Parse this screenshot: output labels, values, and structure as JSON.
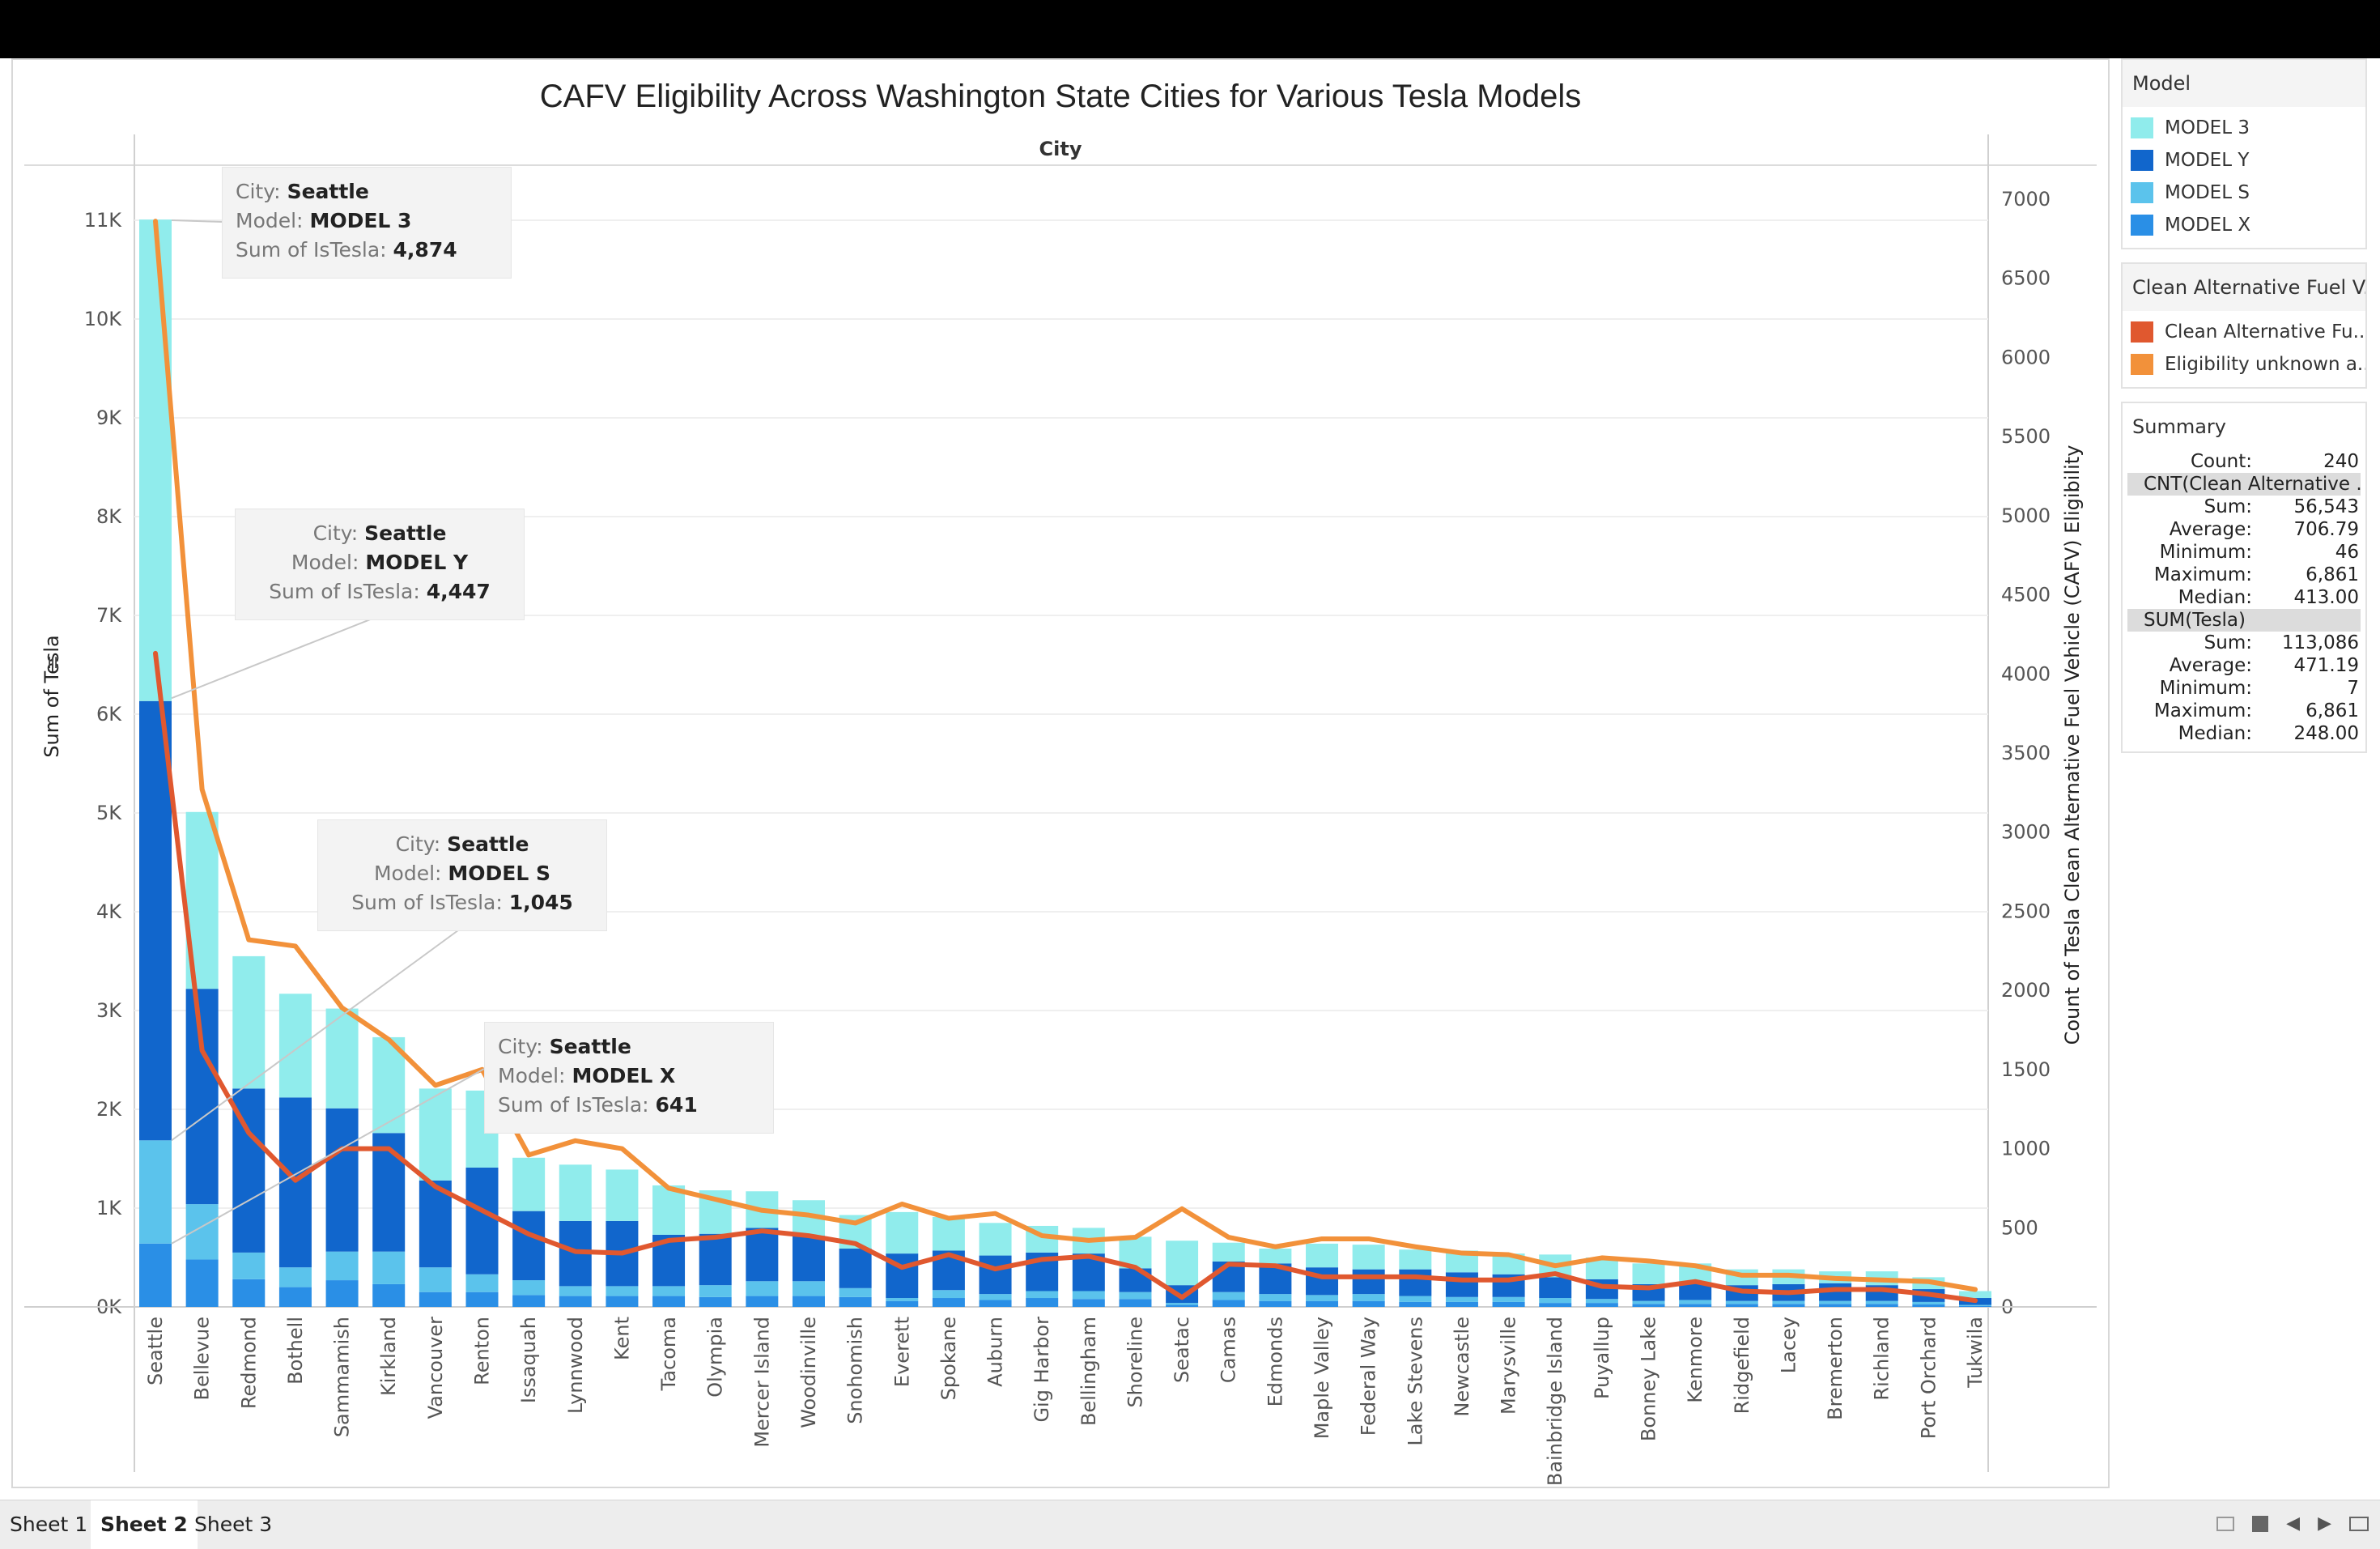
{
  "chart_data": {
    "type": "bar",
    "title": "CAFV Eligibility Across Washington State Cities for Various Tesla Models",
    "column_header": "City",
    "ylabel_left": "Sum of Tesla",
    "ylabel_right": "Count of Tesla Clean Alternative Fuel Vehicle (CAFV) Eligibility",
    "ylim_left": [
      0,
      11000
    ],
    "ylim_right": [
      0,
      7000
    ],
    "left_ticks": [
      {
        "v": 0,
        "label": "0K"
      },
      {
        "v": 1000,
        "label": "1K"
      },
      {
        "v": 2000,
        "label": "2K"
      },
      {
        "v": 3000,
        "label": "3K"
      },
      {
        "v": 4000,
        "label": "4K"
      },
      {
        "v": 5000,
        "label": "5K"
      },
      {
        "v": 6000,
        "label": "6K"
      },
      {
        "v": 7000,
        "label": "7K"
      },
      {
        "v": 8000,
        "label": "8K"
      },
      {
        "v": 9000,
        "label": "9K"
      },
      {
        "v": 10000,
        "label": "10K"
      },
      {
        "v": 11000,
        "label": "11K"
      }
    ],
    "right_ticks": [
      0,
      500,
      1000,
      1500,
      2000,
      2500,
      3000,
      3500,
      4000,
      4500,
      5000,
      5500,
      6000,
      6500,
      7000
    ],
    "categories": [
      "Seattle",
      "Bellevue",
      "Redmond",
      "Bothell",
      "Sammamish",
      "Kirkland",
      "Vancouver",
      "Renton",
      "Issaquah",
      "Lynnwood",
      "Kent",
      "Tacoma",
      "Olympia",
      "Mercer Island",
      "Woodinville",
      "Snohomish",
      "Everett",
      "Spokane",
      "Auburn",
      "Gig Harbor",
      "Bellingham",
      "Shoreline",
      "Seatac",
      "Camas",
      "Edmonds",
      "Maple Valley",
      "Federal Way",
      "Lake Stevens",
      "Newcastle",
      "Marysville",
      "Bainbridge Island",
      "Puyallup",
      "Bonney Lake",
      "Kenmore",
      "Ridgefield",
      "Lacey",
      "Bremerton",
      "Richland",
      "Port Orchard",
      "Tukwila"
    ],
    "series": [
      {
        "name": "MODEL X",
        "color": "#2a8fe6",
        "values": [
          641,
          480,
          280,
          200,
          270,
          230,
          150,
          150,
          120,
          110,
          110,
          110,
          100,
          110,
          110,
          100,
          60,
          90,
          70,
          90,
          80,
          80,
          20,
          70,
          60,
          60,
          60,
          50,
          50,
          50,
          40,
          40,
          30,
          30,
          30,
          30,
          30,
          30,
          25,
          10
        ]
      },
      {
        "name": "MODEL S",
        "color": "#5bc3ec",
        "values": [
          1045,
          560,
          270,
          200,
          290,
          330,
          250,
          180,
          150,
          100,
          100,
          100,
          120,
          150,
          150,
          90,
          30,
          80,
          60,
          70,
          80,
          70,
          20,
          80,
          70,
          60,
          70,
          60,
          50,
          50,
          50,
          40,
          30,
          40,
          30,
          30,
          30,
          30,
          25,
          10
        ]
      },
      {
        "name": "MODEL Y",
        "color": "#1166cc",
        "values": [
          4447,
          2180,
          1660,
          1720,
          1450,
          1200,
          880,
          1080,
          700,
          660,
          660,
          520,
          520,
          540,
          460,
          400,
          450,
          400,
          390,
          390,
          380,
          240,
          180,
          310,
          310,
          280,
          250,
          270,
          250,
          230,
          210,
          200,
          170,
          180,
          160,
          170,
          180,
          160,
          130,
          70
        ]
      },
      {
        "name": "MODEL 3",
        "color": "#90ecec",
        "values": [
          4874,
          1790,
          1340,
          1050,
          1010,
          970,
          930,
          780,
          540,
          570,
          520,
          500,
          440,
          370,
          360,
          340,
          420,
          340,
          330,
          270,
          260,
          320,
          450,
          190,
          150,
          240,
          250,
          200,
          220,
          210,
          230,
          220,
          210,
          190,
          160,
          150,
          120,
          140,
          120,
          70
        ]
      }
    ],
    "lines": [
      {
        "name": "Clean Alternative Fuel Vehicle Eligible",
        "color": "#e0582f",
        "values": [
          4130,
          1620,
          1100,
          800,
          1000,
          1000,
          760,
          610,
          460,
          350,
          340,
          420,
          440,
          480,
          450,
          400,
          250,
          330,
          240,
          300,
          320,
          250,
          60,
          270,
          260,
          190,
          190,
          190,
          170,
          170,
          210,
          130,
          120,
          160,
          100,
          90,
          110,
          110,
          80,
          40
        ]
      },
      {
        "name": "Eligibility unknown as battery range has not been researched",
        "color": "#f2913a",
        "values": [
          6861,
          3270,
          2320,
          2280,
          1890,
          1690,
          1400,
          1500,
          960,
          1050,
          1000,
          750,
          680,
          610,
          580,
          530,
          650,
          560,
          590,
          450,
          420,
          440,
          620,
          440,
          380,
          430,
          430,
          380,
          340,
          330,
          260,
          310,
          290,
          260,
          200,
          200,
          180,
          170,
          160,
          110
        ]
      }
    ]
  },
  "tooltips": [
    {
      "city_label": "City:",
      "city": "Seattle",
      "model_label": "Model:",
      "model": "MODEL 3",
      "sum_label": "Sum of IsTesla:",
      "sum": "4,874"
    },
    {
      "city_label": "City:",
      "city": "Seattle",
      "model_label": "Model:",
      "model": "MODEL Y",
      "sum_label": "Sum of IsTesla:",
      "sum": "4,447"
    },
    {
      "city_label": "City:",
      "city": "Seattle",
      "model_label": "Model:",
      "model": "MODEL S",
      "sum_label": "Sum of IsTesla:",
      "sum": "1,045"
    },
    {
      "city_label": "City:",
      "city": "Seattle",
      "model_label": "Model:",
      "model": "MODEL X",
      "sum_label": "Sum of IsTesla:",
      "sum": "641"
    }
  ],
  "legend_model": {
    "title": "Model",
    "items": [
      {
        "label": "MODEL 3",
        "color": "#90ecec"
      },
      {
        "label": "MODEL Y",
        "color": "#1166cc"
      },
      {
        "label": "MODEL S",
        "color": "#5bc3ec"
      },
      {
        "label": "MODEL X",
        "color": "#2a8fe6"
      }
    ]
  },
  "legend_cafv": {
    "title": "Clean Alternative Fuel V...",
    "items": [
      {
        "label": "Clean Alternative Fu..",
        "color": "#e0582f"
      },
      {
        "label": "Eligibility unknown a..",
        "color": "#f2913a"
      }
    ]
  },
  "summary": {
    "title": "Summary",
    "count_label": "Count:",
    "count": "240",
    "group1_title": "CNT(Clean Alternative ...",
    "group1": [
      {
        "k": "Sum:",
        "v": "56,543"
      },
      {
        "k": "Average:",
        "v": "706.79"
      },
      {
        "k": "Minimum:",
        "v": "46"
      },
      {
        "k": "Maximum:",
        "v": "6,861"
      },
      {
        "k": "Median:",
        "v": "413.00"
      }
    ],
    "group2_title": "SUM(Tesla)",
    "group2": [
      {
        "k": "Sum:",
        "v": "113,086"
      },
      {
        "k": "Average:",
        "v": "471.19"
      },
      {
        "k": "Minimum:",
        "v": "7"
      },
      {
        "k": "Maximum:",
        "v": "6,861"
      },
      {
        "k": "Median:",
        "v": "248.00"
      }
    ]
  },
  "tabs": [
    "Sheet 1",
    "Sheet 2",
    "Sheet 3"
  ],
  "active_tab": "Sheet 2"
}
